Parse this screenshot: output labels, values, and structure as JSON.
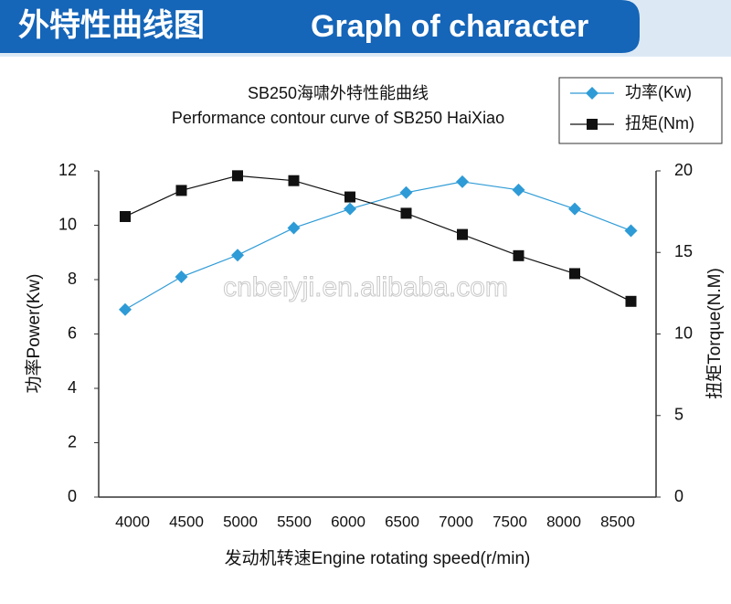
{
  "header": {
    "title": "外特性曲线图",
    "subtitle": "Graph of character"
  },
  "chart_data": {
    "type": "line",
    "title": "SB250海啸外特性能曲线",
    "subtitle": "Performance contour curve of SB250 HaiXiao",
    "x_label": "发动机转速Engine rotating speed(r/min)",
    "y_label": "功率Power(Kw)",
    "y2_label": "扭矩Torque(N.M)",
    "watermark": "cnbeiyji.en.alibaba.com",
    "categories": [
      "4000",
      "4500",
      "5000",
      "5500",
      "6000",
      "6500",
      "7000",
      "7500",
      "8000",
      "8500"
    ],
    "series": [
      {
        "name": "功率(Kw)",
        "color": "#2e9bd6",
        "marker": "diamond",
        "values": [
          6.9,
          8.1,
          8.9,
          9.9,
          10.6,
          11.2,
          11.6,
          11.3,
          10.6,
          9.8
        ]
      },
      {
        "name": "扭矩(Nm)",
        "color": "#111111",
        "marker": "square",
        "axis": "y2",
        "values": [
          17.2,
          18.8,
          19.7,
          19.4,
          18.4,
          17.4,
          16.1,
          14.8,
          13.7,
          12.0
        ]
      }
    ],
    "ylim": [
      0,
      12
    ],
    "yticks": [
      0,
      2,
      4,
      6,
      8,
      10,
      12
    ],
    "y2lim": [
      0,
      20
    ],
    "y2ticks": [
      0,
      5,
      10,
      15,
      20
    ],
    "legend": "top-right"
  }
}
